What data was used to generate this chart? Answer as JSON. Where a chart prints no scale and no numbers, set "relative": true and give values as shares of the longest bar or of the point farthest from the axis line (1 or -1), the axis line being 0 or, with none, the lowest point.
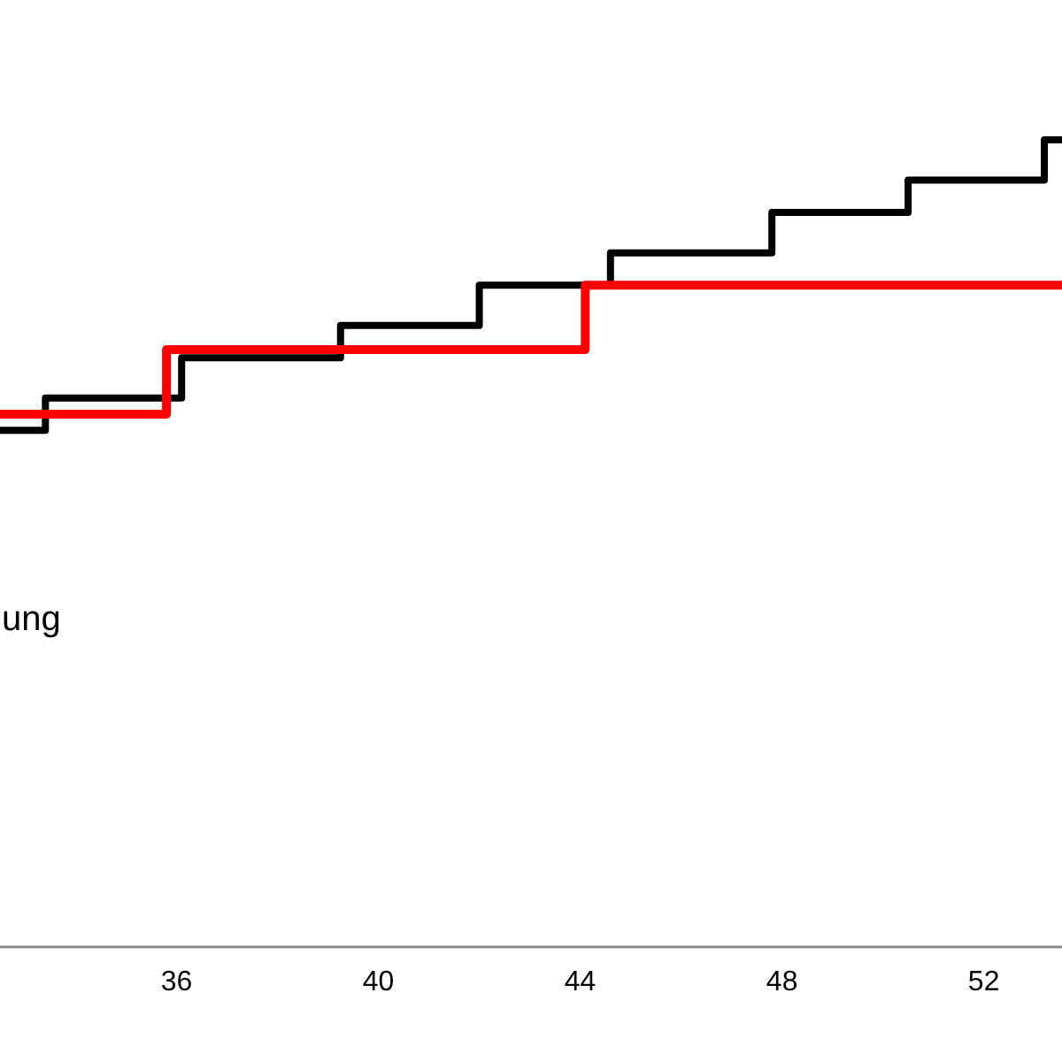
{
  "chart_data": {
    "type": "step",
    "relative": true,
    "xlim": [
      32.5,
      53.55
    ],
    "xticks": [
      36,
      40,
      44,
      48,
      52
    ],
    "marker": "none",
    "series": [
      {
        "color": "#000000",
        "x": [
          32.5,
          33.4,
          36.1,
          39.25,
          42.0,
          44.6,
          47.8,
          50.5,
          53.2,
          53.55
        ],
        "values": [
          0.64,
          0.68,
          0.73,
          0.77,
          0.82,
          0.86,
          0.91,
          0.95,
          1.0,
          1.0
        ]
      },
      {
        "color": "#ff0000",
        "x": [
          32.5,
          35.8,
          44.1,
          53.55
        ],
        "values": [
          0.66,
          0.74,
          0.82,
          0.82
        ]
      }
    ],
    "annotations": [
      "ung"
    ]
  }
}
